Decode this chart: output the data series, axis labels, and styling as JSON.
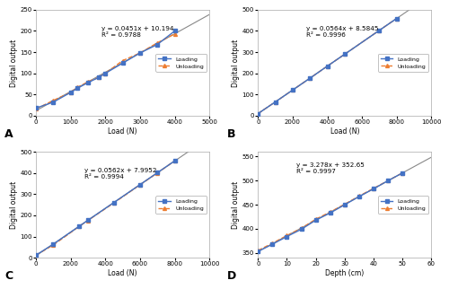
{
  "A": {
    "equation": "y = 0.0451x + 10.194",
    "r2": "R² = 0.9788",
    "xlabel": "Load (N)",
    "ylabel": "Digital output",
    "xlim": [
      0,
      5000
    ],
    "ylim": [
      0,
      250
    ],
    "xticks": [
      0,
      1000,
      2000,
      3000,
      4000,
      5000
    ],
    "yticks": [
      0,
      50,
      100,
      150,
      200,
      250
    ],
    "label": "A",
    "loading_x": [
      0,
      500,
      1000,
      1200,
      1500,
      1800,
      2000,
      2500,
      3000,
      3500,
      4000
    ],
    "loading_y": [
      18,
      32,
      55,
      65,
      78,
      90,
      100,
      124,
      148,
      168,
      200
    ],
    "unloading_x": [
      0,
      500,
      1000,
      1200,
      1500,
      1800,
      2000,
      2500,
      3000,
      3500,
      4000
    ],
    "unloading_y": [
      16,
      36,
      55,
      67,
      80,
      90,
      100,
      130,
      148,
      172,
      193
    ],
    "eq_x": 0.38,
    "eq_y": 0.85,
    "legend_loc": "center right"
  },
  "B": {
    "equation": "y = 0.0564x + 8.5845",
    "r2": "R² = 0.9996",
    "xlabel": "Load (N)",
    "ylabel": "Digital output",
    "xlim": [
      0,
      10000
    ],
    "ylim": [
      0,
      500
    ],
    "xticks": [
      0,
      2000,
      4000,
      6000,
      8000,
      10000
    ],
    "yticks": [
      0,
      100,
      200,
      300,
      400,
      500
    ],
    "label": "B",
    "loading_x": [
      0,
      1000,
      2000,
      3000,
      4000,
      5000,
      7000,
      8000
    ],
    "loading_y": [
      10,
      65,
      121,
      177,
      234,
      290,
      403,
      459
    ],
    "unloading_x": [
      0,
      1000,
      2000,
      3000,
      4000,
      5000,
      7000,
      8000
    ],
    "unloading_y": [
      10,
      65,
      121,
      177,
      234,
      290,
      403,
      459
    ],
    "eq_x": 0.28,
    "eq_y": 0.85,
    "legend_loc": "center right"
  },
  "C": {
    "equation": "y = 0.0562x + 7.9952",
    "r2": "R² = 0.9994",
    "xlabel": "Load (N)",
    "ylabel": "Digital output",
    "xlim": [
      0,
      10000
    ],
    "ylim": [
      0,
      500
    ],
    "xticks": [
      0,
      2000,
      4000,
      6000,
      8000,
      10000
    ],
    "yticks": [
      0,
      100,
      200,
      300,
      400,
      500
    ],
    "label": "C",
    "loading_x": [
      0,
      1000,
      2500,
      3000,
      4500,
      6000,
      7000,
      8000
    ],
    "loading_y": [
      12,
      64,
      149,
      177,
      261,
      345,
      401,
      457
    ],
    "unloading_x": [
      0,
      1000,
      2500,
      3000,
      4500,
      6000,
      7000,
      8000
    ],
    "unloading_y": [
      12,
      60,
      148,
      176,
      259,
      344,
      400,
      457
    ],
    "eq_x": 0.28,
    "eq_y": 0.85,
    "legend_loc": "center right"
  },
  "D": {
    "equation": "y = 3.278x + 352.65",
    "r2": "R² = 0.9997",
    "xlabel": "Depth (cm)",
    "ylabel": "Digital output",
    "xlim": [
      0,
      60
    ],
    "ylim": [
      340,
      560
    ],
    "xticks": [
      0,
      10,
      20,
      30,
      40,
      50,
      60
    ],
    "yticks": [
      350,
      400,
      450,
      500,
      550
    ],
    "label": "D",
    "loading_x": [
      0,
      5,
      10,
      15,
      20,
      25,
      30,
      35,
      40,
      45,
      50
    ],
    "loading_y": [
      353,
      368,
      384,
      399,
      418,
      433,
      450,
      467,
      483,
      500,
      516
    ],
    "unloading_x": [
      0,
      5,
      10,
      15,
      20,
      25,
      30,
      35,
      40,
      45,
      50
    ],
    "unloading_y": [
      355,
      370,
      386,
      401,
      420,
      435,
      451,
      468,
      484,
      500,
      516
    ],
    "eq_x": 0.22,
    "eq_y": 0.9,
    "legend_loc": "center right"
  },
  "loading_color": "#4472C4",
  "unloading_color": "#ED7D31",
  "bg_color": "#FFFFFF"
}
